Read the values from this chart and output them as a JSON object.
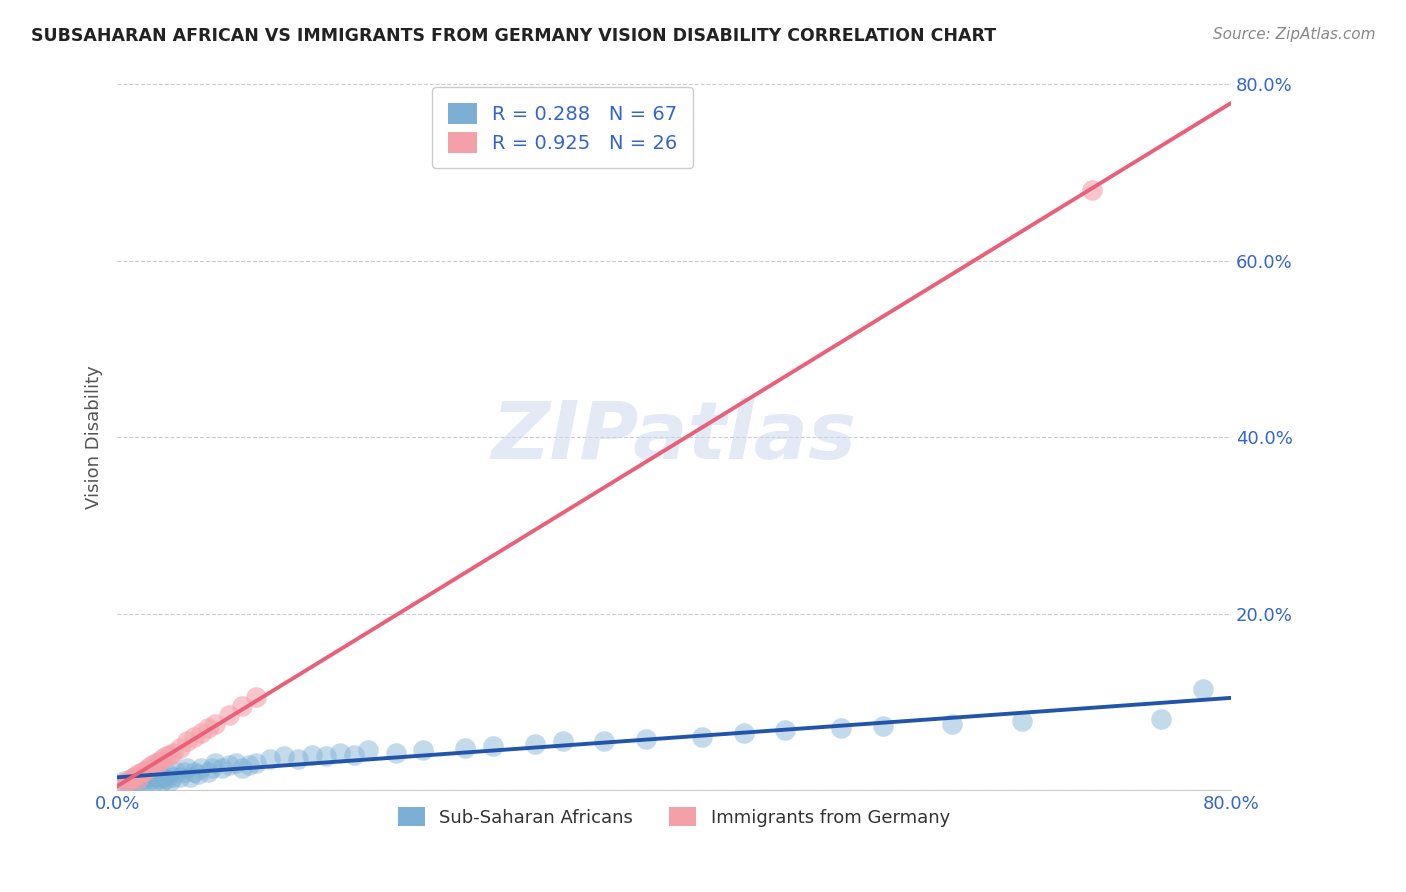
{
  "title": "SUBSAHARAN AFRICAN VS IMMIGRANTS FROM GERMANY VISION DISABILITY CORRELATION CHART",
  "source": "Source: ZipAtlas.com",
  "ylabel": "Vision Disability",
  "xlim": [
    0.0,
    0.8
  ],
  "ylim": [
    0.0,
    0.8
  ],
  "background_color": "#ffffff",
  "grid_color": "#cccccc",
  "watermark": "ZIPatlas",
  "blue_R": 0.288,
  "blue_N": 67,
  "pink_R": 0.925,
  "pink_N": 26,
  "blue_color": "#7bafd4",
  "pink_color": "#f4a0a8",
  "blue_line_color": "#2255aa",
  "pink_line_color": "#e8607a",
  "legend_blue_label": "Sub-Saharan Africans",
  "legend_pink_label": "Immigrants from Germany",
  "blue_scatter_x": [
    0.005,
    0.008,
    0.01,
    0.012,
    0.013,
    0.015,
    0.015,
    0.018,
    0.018,
    0.02,
    0.02,
    0.022,
    0.022,
    0.025,
    0.025,
    0.027,
    0.028,
    0.03,
    0.03,
    0.032,
    0.033,
    0.035,
    0.037,
    0.038,
    0.04,
    0.042,
    0.045,
    0.048,
    0.05,
    0.052,
    0.055,
    0.058,
    0.06,
    0.065,
    0.068,
    0.07,
    0.075,
    0.08,
    0.085,
    0.09,
    0.095,
    0.1,
    0.11,
    0.12,
    0.13,
    0.14,
    0.15,
    0.16,
    0.17,
    0.18,
    0.2,
    0.22,
    0.25,
    0.27,
    0.3,
    0.32,
    0.35,
    0.38,
    0.42,
    0.45,
    0.48,
    0.52,
    0.55,
    0.6,
    0.65,
    0.75,
    0.78
  ],
  "blue_scatter_y": [
    0.01,
    0.008,
    0.012,
    0.01,
    0.015,
    0.01,
    0.012,
    0.01,
    0.015,
    0.012,
    0.018,
    0.01,
    0.015,
    0.012,
    0.018,
    0.01,
    0.015,
    0.012,
    0.018,
    0.01,
    0.015,
    0.012,
    0.018,
    0.01,
    0.015,
    0.02,
    0.015,
    0.02,
    0.025,
    0.015,
    0.02,
    0.018,
    0.025,
    0.02,
    0.025,
    0.03,
    0.025,
    0.028,
    0.03,
    0.025,
    0.028,
    0.03,
    0.035,
    0.038,
    0.035,
    0.04,
    0.038,
    0.042,
    0.04,
    0.045,
    0.042,
    0.045,
    0.048,
    0.05,
    0.052,
    0.055,
    0.055,
    0.058,
    0.06,
    0.065,
    0.068,
    0.07,
    0.072,
    0.075,
    0.078,
    0.08,
    0.115
  ],
  "pink_scatter_x": [
    0.005,
    0.008,
    0.01,
    0.012,
    0.015,
    0.015,
    0.018,
    0.02,
    0.022,
    0.025,
    0.028,
    0.03,
    0.032,
    0.035,
    0.038,
    0.04,
    0.045,
    0.05,
    0.055,
    0.06,
    0.065,
    0.07,
    0.08,
    0.09,
    0.1,
    0.7
  ],
  "pink_scatter_y": [
    0.008,
    0.01,
    0.012,
    0.015,
    0.012,
    0.018,
    0.02,
    0.022,
    0.025,
    0.028,
    0.03,
    0.032,
    0.035,
    0.038,
    0.04,
    0.042,
    0.048,
    0.055,
    0.06,
    0.065,
    0.07,
    0.075,
    0.085,
    0.095,
    0.105,
    0.68
  ]
}
